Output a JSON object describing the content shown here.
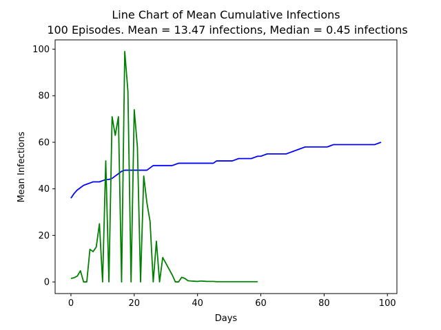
{
  "chart_data": {
    "type": "line",
    "title": "Line Chart of Mean Cumulative Infections",
    "subtitle": "100 Episodes. Mean = 13.47 infections, Median = 0.45 infections",
    "xlabel": "Days",
    "ylabel": "Mean Infections",
    "xlim": [
      -5,
      103
    ],
    "ylim": [
      -5,
      104
    ],
    "xticks": [
      0,
      20,
      40,
      60,
      80,
      100
    ],
    "yticks": [
      0,
      20,
      40,
      60,
      80,
      100
    ],
    "grid": false,
    "series": [
      {
        "color": "#0000ff",
        "x": [
          0,
          1,
          2,
          3,
          4,
          5,
          6,
          7,
          8,
          9,
          10,
          11,
          12,
          13,
          14,
          15,
          16,
          17,
          18,
          19,
          20,
          21,
          22,
          23,
          24,
          25,
          26,
          27,
          28,
          29,
          30,
          31,
          32,
          33,
          34,
          35,
          36,
          37,
          38,
          39,
          40,
          41,
          42,
          43,
          44,
          45,
          46,
          47,
          48,
          49,
          50,
          51,
          52,
          53,
          54,
          55,
          56,
          57,
          58,
          59,
          60,
          61,
          62,
          63,
          64,
          65,
          66,
          67,
          68,
          69,
          70,
          71,
          72,
          73,
          74,
          75,
          76,
          77,
          78,
          79,
          80,
          81,
          82,
          83,
          84,
          85,
          86,
          87,
          88,
          89,
          90,
          91,
          92,
          93,
          94,
          95,
          96,
          97,
          98
        ],
        "y": [
          36,
          38,
          39.5,
          40.5,
          41.5,
          42,
          42.5,
          43,
          43,
          43,
          43.5,
          44,
          44,
          44.5,
          45.5,
          46.5,
          47.5,
          48,
          48,
          48,
          48,
          48,
          48,
          48,
          48,
          49,
          50,
          50,
          50,
          50,
          50,
          50,
          50,
          50.5,
          51,
          51,
          51,
          51,
          51,
          51,
          51,
          51,
          51,
          51,
          51,
          51,
          52,
          52,
          52,
          52,
          52,
          52,
          52.5,
          53,
          53,
          53,
          53,
          53,
          53.5,
          54,
          54,
          54.5,
          55,
          55,
          55,
          55,
          55,
          55,
          55,
          55.5,
          56,
          56.5,
          57,
          57.5,
          58,
          58,
          58,
          58,
          58,
          58,
          58,
          58,
          58.5,
          59,
          59,
          59,
          59,
          59,
          59,
          59,
          59,
          59,
          59,
          59,
          59,
          59,
          59,
          59.5,
          60
        ]
      },
      {
        "color": "#008000",
        "x": [
          0,
          1,
          2,
          3,
          4,
          5,
          6,
          7,
          8,
          9,
          10,
          11,
          12,
          13,
          14,
          15,
          16,
          17,
          18,
          19,
          20,
          21,
          22,
          23,
          24,
          25,
          26,
          27,
          28,
          29,
          30,
          31,
          32,
          33,
          34,
          35,
          36,
          37,
          38,
          39,
          40,
          41,
          42,
          43,
          44,
          45,
          46,
          47,
          48,
          49,
          50,
          51,
          52,
          53,
          54,
          55,
          56,
          57,
          58,
          59
        ],
        "y": [
          1.5,
          1.8,
          2.5,
          4.8,
          0,
          0,
          14,
          13,
          15,
          25,
          0,
          52,
          0,
          71,
          63,
          71,
          0,
          99,
          82,
          0,
          74,
          58,
          0,
          45.5,
          34,
          26,
          0,
          17.5,
          0,
          10.5,
          8,
          5.5,
          3,
          0,
          0,
          2,
          1.5,
          0.5,
          0.4,
          0.3,
          0.2,
          0.4,
          0.3,
          0.2,
          0.2,
          0.2,
          0.1,
          0.1,
          0.1,
          0.1,
          0.1,
          0.1,
          0.1,
          0.1,
          0.1,
          0.1,
          0.1,
          0.1,
          0.1,
          0.1
        ]
      }
    ]
  }
}
